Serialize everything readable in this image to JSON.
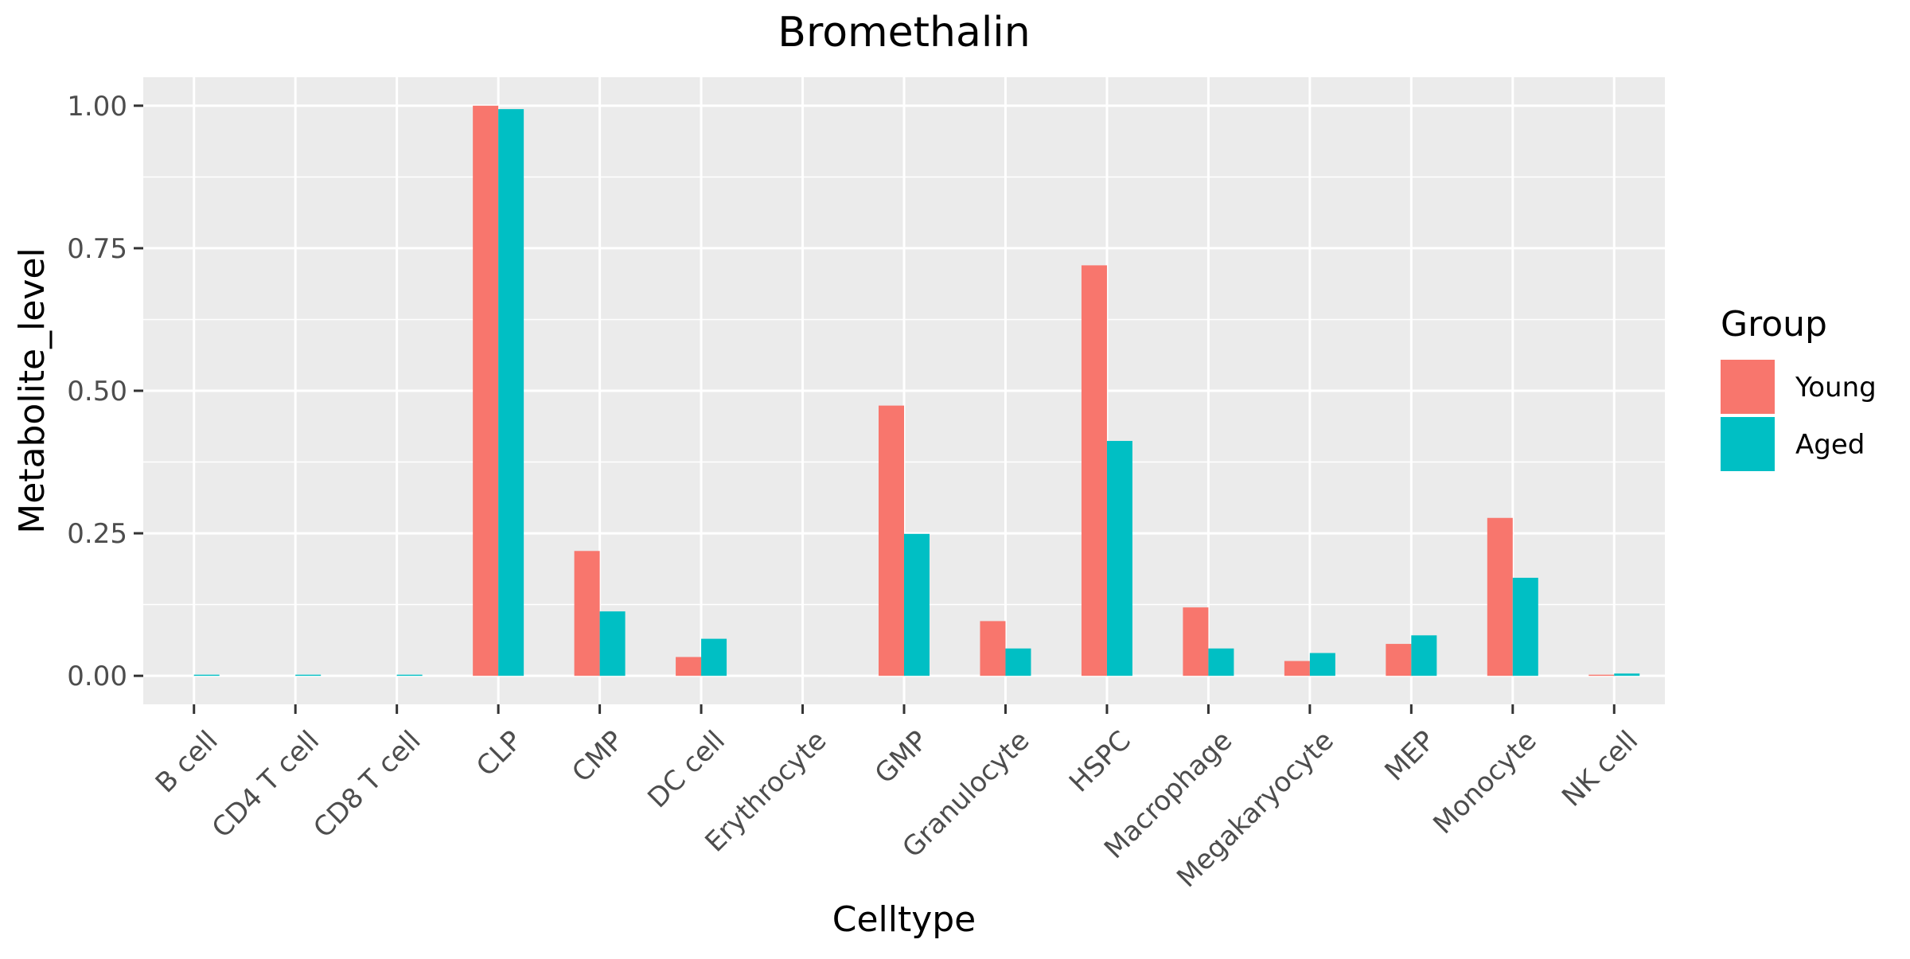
{
  "chart_data": {
    "type": "bar",
    "title": "Bromethalin",
    "xlabel": "Celltype",
    "ylabel": "Metabolite_level",
    "categories": [
      "B cell",
      "CD4 T cell",
      "CD8 T cell",
      "CLP",
      "CMP",
      "DC cell",
      "Erythrocyte",
      "GMP",
      "Granulocyte",
      "HSPC",
      "Macrophage",
      "Megakaryocyte",
      "MEP",
      "Monocyte",
      "NK cell"
    ],
    "series": [
      {
        "name": "Young",
        "color": "#F8766D",
        "values": [
          0.0,
          0.0,
          0.0,
          1.0,
          0.219,
          0.033,
          0.0,
          0.474,
          0.096,
          0.72,
          0.12,
          0.026,
          0.056,
          0.277,
          0.002
        ]
      },
      {
        "name": "Aged",
        "color": "#00BFC4",
        "values": [
          0.002,
          0.002,
          0.002,
          0.994,
          0.113,
          0.065,
          0.0,
          0.249,
          0.048,
          0.412,
          0.048,
          0.04,
          0.071,
          0.172,
          0.004
        ]
      }
    ],
    "ylim": [
      -0.05,
      1.05
    ],
    "yticks": [
      0.0,
      0.25,
      0.5,
      0.75,
      1.0
    ],
    "ytick_labels": [
      "0.00",
      "0.25",
      "0.50",
      "0.75",
      "1.00"
    ],
    "grid": true,
    "legend": {
      "title": "Group",
      "position": "right"
    },
    "panel_color": "#EBEBEB",
    "grid_color": "#FFFFFF"
  }
}
